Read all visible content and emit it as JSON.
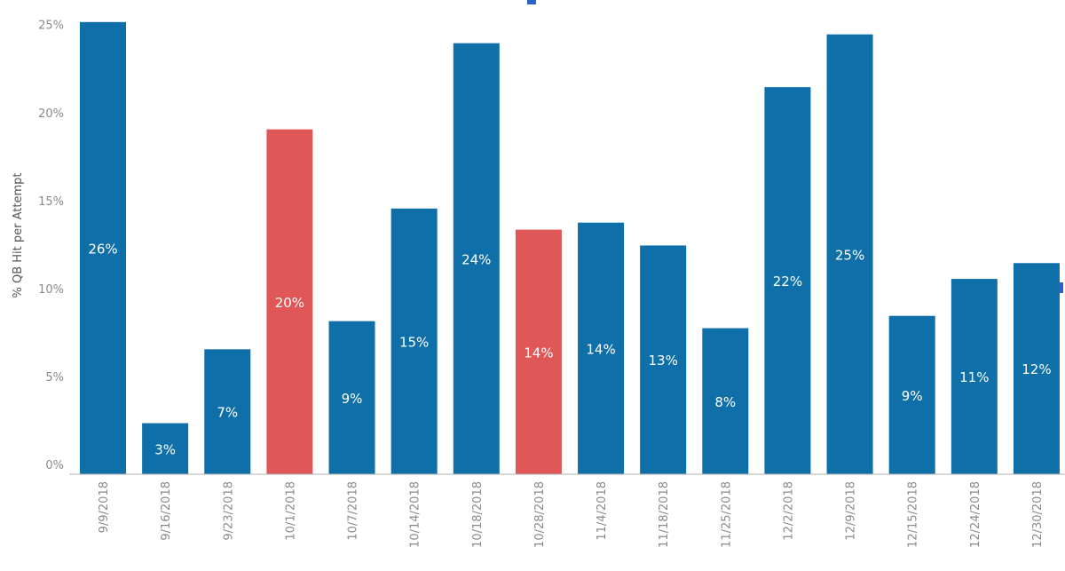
{
  "chart_data": {
    "type": "bar",
    "title": "",
    "xlabel": "",
    "ylabel": "% QB Hit per Attempt",
    "ylim": [
      0,
      26.6
    ],
    "yticks": [
      0,
      5,
      10,
      15,
      20,
      25
    ],
    "ytick_labels": [
      "0%",
      "5%",
      "10%",
      "15%",
      "20%",
      "25%"
    ],
    "grid": false,
    "legend": "none",
    "categories": [
      "9/9/2018",
      "9/16/2018",
      "9/23/2018",
      "10/1/2018",
      "10/7/2018",
      "10/14/2018",
      "10/18/2018",
      "10/28/2018",
      "11/4/2018",
      "11/18/2018",
      "11/25/2018",
      "12/2/2018",
      "12/9/2018",
      "12/15/2018",
      "12/24/2018",
      "12/30/2018"
    ],
    "values": [
      25.7,
      2.9,
      7.1,
      19.6,
      8.7,
      15.1,
      24.5,
      13.9,
      14.3,
      13.0,
      8.3,
      22.0,
      25.0,
      9.0,
      11.1,
      12.0
    ],
    "value_labels": [
      "26%",
      "3%",
      "7%",
      "20%",
      "9%",
      "15%",
      "24%",
      "14%",
      "14%",
      "13%",
      "8%",
      "22%",
      "25%",
      "9%",
      "11%",
      "12%"
    ],
    "highlighted": [
      false,
      false,
      false,
      true,
      false,
      false,
      false,
      true,
      false,
      false,
      false,
      false,
      false,
      false,
      false,
      false
    ],
    "colors": {
      "default": "#0f6fa8",
      "highlight": "#e05758",
      "axis_line": "#b0b0b0",
      "tick_text": "#8a8a8a",
      "edge_accent": "#2b62c8"
    }
  }
}
